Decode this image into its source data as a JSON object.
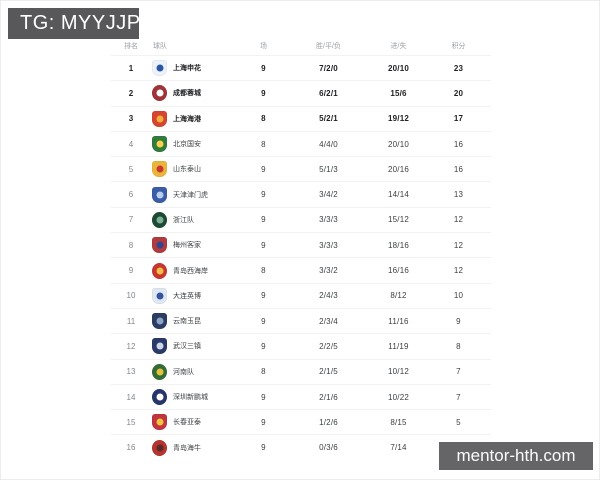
{
  "page": {
    "tg_label": "TG: MYYJJPP",
    "watermark": "mentor-hth.com",
    "badge_bg": "#58585a",
    "watermark_bg": "#656567"
  },
  "table": {
    "columns": [
      {
        "key": "rank",
        "label": "排名"
      },
      {
        "key": "team",
        "label": "球队"
      },
      {
        "key": "played",
        "label": "场"
      },
      {
        "key": "wdl",
        "label": "胜/平/负"
      },
      {
        "key": "goals",
        "label": "进/失"
      },
      {
        "key": "points",
        "label": "积分"
      }
    ],
    "rows": [
      {
        "rank": 1,
        "team": "上海申花",
        "played": 9,
        "wdl": "7/2/0",
        "goals": "20/10",
        "points": 23,
        "bold": true,
        "logo": {
          "shape": "shield",
          "bg": "#eef1fa",
          "fg": "#2857a4"
        }
      },
      {
        "rank": 2,
        "team": "成都蓉城",
        "played": 9,
        "wdl": "6/2/1",
        "goals": "15/6",
        "points": 20,
        "bold": true,
        "logo": {
          "shape": "circle",
          "bg": "#a03338",
          "fg": "#ffffff"
        }
      },
      {
        "rank": 3,
        "team": "上海海港",
        "played": 8,
        "wdl": "5/2/1",
        "goals": "19/12",
        "points": 17,
        "bold": true,
        "logo": {
          "shape": "shield",
          "bg": "#d6452f",
          "fg": "#f2b03c"
        }
      },
      {
        "rank": 4,
        "team": "北京国安",
        "played": 8,
        "wdl": "4/4/0",
        "goals": "20/10",
        "points": 16,
        "bold": false,
        "logo": {
          "shape": "shield",
          "bg": "#2e7d3a",
          "fg": "#ffd24a"
        }
      },
      {
        "rank": 5,
        "team": "山东泰山",
        "played": 9,
        "wdl": "5/1/3",
        "goals": "20/16",
        "points": 16,
        "bold": false,
        "logo": {
          "shape": "shield",
          "bg": "#e9b53c",
          "fg": "#c8362e"
        }
      },
      {
        "rank": 6,
        "team": "天津津门虎",
        "played": 9,
        "wdl": "3/4/2",
        "goals": "14/14",
        "points": 13,
        "bold": false,
        "logo": {
          "shape": "shield",
          "bg": "#3a5da8",
          "fg": "#b8cdf0"
        }
      },
      {
        "rank": 7,
        "team": "浙江队",
        "played": 9,
        "wdl": "3/3/3",
        "goals": "15/12",
        "points": 12,
        "bold": false,
        "logo": {
          "shape": "circle",
          "bg": "#1c4a33",
          "fg": "#7fae96"
        }
      },
      {
        "rank": 8,
        "team": "梅州客家",
        "played": 9,
        "wdl": "3/3/3",
        "goals": "18/16",
        "points": 12,
        "bold": false,
        "logo": {
          "shape": "shield",
          "bg": "#b03a3f",
          "fg": "#31458c"
        }
      },
      {
        "rank": 9,
        "team": "青岛西海岸",
        "played": 8,
        "wdl": "3/3/2",
        "goals": "16/16",
        "points": 12,
        "bold": false,
        "logo": {
          "shape": "circle",
          "bg": "#c8372f",
          "fg": "#f0c04a"
        }
      },
      {
        "rank": 10,
        "team": "大连英博",
        "played": 9,
        "wdl": "2/4/3",
        "goals": "8/12",
        "points": 10,
        "bold": false,
        "logo": {
          "shape": "shield",
          "bg": "#dfe7f2",
          "fg": "#33539e"
        }
      },
      {
        "rank": 11,
        "team": "云南玉昆",
        "played": 9,
        "wdl": "2/3/4",
        "goals": "11/16",
        "points": 9,
        "bold": false,
        "logo": {
          "shape": "shield",
          "bg": "#2c3d63",
          "fg": "#8fa3c8"
        }
      },
      {
        "rank": 12,
        "team": "武汉三镇",
        "played": 9,
        "wdl": "2/2/5",
        "goals": "11/19",
        "points": 8,
        "bold": false,
        "logo": {
          "shape": "shield",
          "bg": "#2a3a68",
          "fg": "#cdd6ea"
        }
      },
      {
        "rank": 13,
        "team": "河南队",
        "played": 8,
        "wdl": "2/1/5",
        "goals": "10/12",
        "points": 7,
        "bold": false,
        "logo": {
          "shape": "circle",
          "bg": "#356b35",
          "fg": "#e3c23f"
        }
      },
      {
        "rank": 14,
        "team": "深圳新鹏城",
        "played": 9,
        "wdl": "2/1/6",
        "goals": "10/22",
        "points": 7,
        "bold": false,
        "logo": {
          "shape": "circle",
          "bg": "#27356b",
          "fg": "#ffffff"
        }
      },
      {
        "rank": 15,
        "team": "长春亚泰",
        "played": 9,
        "wdl": "1/2/6",
        "goals": "8/15",
        "points": 5,
        "bold": false,
        "logo": {
          "shape": "shield",
          "bg": "#c03540",
          "fg": "#f3c53d"
        }
      },
      {
        "rank": 16,
        "team": "青岛海牛",
        "played": 9,
        "wdl": "0/3/6",
        "goals": "7/14",
        "points": 3,
        "bold": false,
        "logo": {
          "shape": "circle",
          "bg": "#b5342d",
          "fg": "#5a2a2a"
        }
      }
    ]
  }
}
